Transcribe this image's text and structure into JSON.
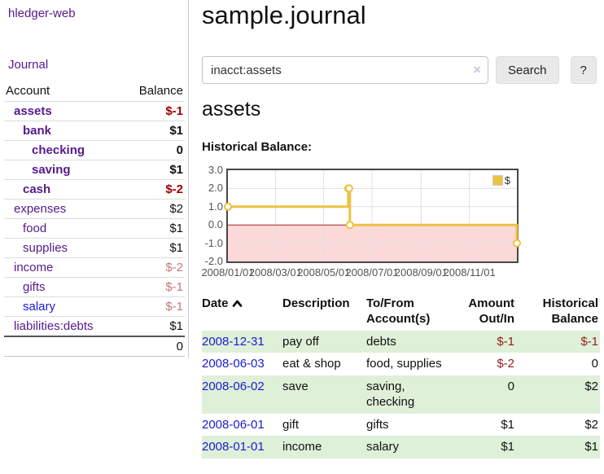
{
  "app": {
    "title": "hledger-web",
    "nav_journal_label": "Journal"
  },
  "sidebar": {
    "header": {
      "account": "Account",
      "balance": "Balance"
    },
    "accounts": [
      {
        "name": "assets",
        "indent": 1,
        "bold": true,
        "balance": "$-1",
        "neg": "strong",
        "link_color": "purple"
      },
      {
        "name": "bank",
        "indent": 2,
        "bold": true,
        "balance": "$1",
        "neg": "none",
        "link_color": "purple"
      },
      {
        "name": "checking",
        "indent": 3,
        "bold": true,
        "balance": "0",
        "neg": "none",
        "link_color": "purple"
      },
      {
        "name": "saving",
        "indent": 3,
        "bold": true,
        "balance": "$1",
        "neg": "none",
        "link_color": "purple"
      },
      {
        "name": "cash",
        "indent": 2,
        "bold": true,
        "balance": "$-2",
        "neg": "strong",
        "link_color": "purple"
      },
      {
        "name": "expenses",
        "indent": 1,
        "bold": false,
        "balance": "$2",
        "neg": "none",
        "link_color": "purple"
      },
      {
        "name": "food",
        "indent": 2,
        "bold": false,
        "balance": "$1",
        "neg": "none",
        "link_color": "purple"
      },
      {
        "name": "supplies",
        "indent": 2,
        "bold": false,
        "balance": "$1",
        "neg": "none",
        "link_color": "purple"
      },
      {
        "name": "income",
        "indent": 1,
        "bold": false,
        "balance": "$-2",
        "neg": "soft",
        "link_color": "purple"
      },
      {
        "name": "gifts",
        "indent": 2,
        "bold": false,
        "balance": "$-1",
        "neg": "soft",
        "link_color": "purple"
      },
      {
        "name": "salary",
        "indent": 2,
        "bold": false,
        "balance": "$-1",
        "neg": "soft",
        "link_color": "blue"
      },
      {
        "name": "liabilities:debts",
        "indent": 1,
        "bold": false,
        "balance": "$1",
        "neg": "none",
        "link_color": "purple"
      }
    ],
    "total": "0"
  },
  "header": {
    "title": "sample.journal"
  },
  "search": {
    "value": "inacct:assets",
    "clear_icon": "×",
    "button_label": "Search",
    "help_label": "?"
  },
  "account_page": {
    "heading": "assets",
    "chart_title": "Historical Balance:"
  },
  "chart_data": {
    "type": "line",
    "step": true,
    "title": "Historical Balance:",
    "series": [
      {
        "name": "$",
        "color": "#EDC240",
        "points": [
          [
            "2008-01-01",
            1
          ],
          [
            "2008-06-01",
            2
          ],
          [
            "2008-06-02",
            2
          ],
          [
            "2008-06-03",
            0
          ],
          [
            "2008-12-31",
            -1
          ]
        ]
      }
    ],
    "x_range": [
      "2008-01-01",
      "2008-12-31"
    ],
    "x_ticks": [
      "2008/01/01",
      "2008/03/01",
      "2008/05/01",
      "2008/07/01",
      "2008/09/01",
      "2008/11/01"
    ],
    "y_ticks": [
      "3.0",
      "2.0",
      "1.0",
      "0.0",
      "-1.0",
      "-2.0"
    ],
    "ylim": [
      -2,
      3
    ],
    "grid": true,
    "legend_position": "top-right",
    "negative_region_color": "#fbd9d9",
    "zero_line_color": "#a32222",
    "grid_color": "#e0e0e0"
  },
  "register": {
    "headers": {
      "date": "Date",
      "description": "Description",
      "accounts": "To/From Account(s)",
      "amount": "Amount Out/In",
      "balance": "Historical Balance"
    },
    "rows": [
      {
        "date": "2008-12-31",
        "description": "pay off",
        "accounts": "debts",
        "amount": "$-1",
        "amount_neg": true,
        "balance": "$-1",
        "balance_neg": true
      },
      {
        "date": "2008-06-03",
        "description": "eat & shop",
        "accounts": "food, supplies",
        "amount": "$-2",
        "amount_neg": true,
        "balance": "0",
        "balance_neg": false
      },
      {
        "date": "2008-06-02",
        "description": "save",
        "accounts": "saving, checking",
        "amount": "0",
        "amount_neg": false,
        "balance": "$2",
        "balance_neg": false
      },
      {
        "date": "2008-06-01",
        "description": "gift",
        "accounts": "gifts",
        "amount": "$1",
        "amount_neg": false,
        "balance": "$2",
        "balance_neg": false
      },
      {
        "date": "2008-01-01",
        "description": "income",
        "accounts": "salary",
        "amount": "$1",
        "amount_neg": false,
        "balance": "$1",
        "balance_neg": false
      }
    ]
  },
  "colors": {
    "link_purple": "#551a8b",
    "link_blue": "#1a1ad1",
    "negative_strong": "#a10000",
    "negative_soft": "#c47979",
    "negative_table": "#8f1d1d",
    "row_stripe_green": "#dff0d8",
    "chart_series": "#EDC240"
  }
}
